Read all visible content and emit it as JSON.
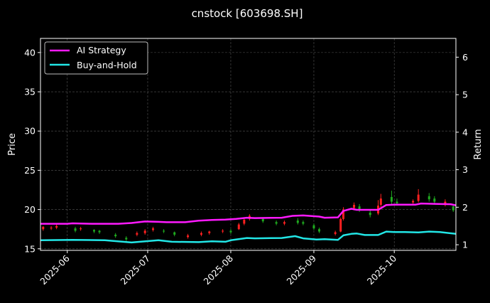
{
  "chart_data": {
    "type": "line",
    "title": "cnstock [603698.SH]",
    "ylabel": "Price",
    "y2label": "Return",
    "ylim": [
      14.8,
      41.8
    ],
    "y2lim": [
      0.85,
      6.5
    ],
    "yticks": [
      15,
      20,
      25,
      30,
      35,
      40
    ],
    "y2ticks": [
      1,
      2,
      3,
      4,
      5,
      6
    ],
    "xlim": [
      "2025-05-22",
      "2025-10-24"
    ],
    "xticks": [
      "2025-06",
      "2025-07",
      "2025-08",
      "2025-09",
      "2025-10"
    ],
    "grid": true,
    "legend_position": "top-left",
    "colors": {
      "up": "#ff2020",
      "down": "#1faa1f",
      "strategy": "#ff1aff",
      "hold": "#22e6e6"
    },
    "series": [
      {
        "name": "AI Strategy",
        "x": [
          "2025-05-22",
          "2025-06-01",
          "2025-06-03",
          "2025-06-10",
          "2025-06-20",
          "2025-06-25",
          "2025-06-30",
          "2025-07-05",
          "2025-07-08",
          "2025-07-15",
          "2025-07-20",
          "2025-07-25",
          "2025-07-30",
          "2025-08-03",
          "2025-08-07",
          "2025-08-10",
          "2025-08-20",
          "2025-08-24",
          "2025-08-28",
          "2025-09-03",
          "2025-09-05",
          "2025-09-10",
          "2025-09-12",
          "2025-09-15",
          "2025-09-17",
          "2025-09-25",
          "2025-09-28",
          "2025-10-01",
          "2025-10-09",
          "2025-10-11",
          "2025-10-16",
          "2025-10-22",
          "2025-10-24"
        ],
        "values": [
          1.56,
          1.56,
          1.57,
          1.56,
          1.56,
          1.58,
          1.62,
          1.61,
          1.6,
          1.6,
          1.64,
          1.66,
          1.67,
          1.69,
          1.72,
          1.71,
          1.72,
          1.77,
          1.78,
          1.75,
          1.72,
          1.73,
          1.9,
          1.96,
          1.93,
          1.93,
          2.06,
          2.07,
          2.07,
          2.1,
          2.09,
          2.08,
          2.05
        ]
      },
      {
        "name": "Buy-and-Hold",
        "x": [
          "2025-05-22",
          "2025-06-03",
          "2025-06-15",
          "2025-06-25",
          "2025-07-05",
          "2025-07-10",
          "2025-07-20",
          "2025-07-25",
          "2025-07-30",
          "2025-08-01",
          "2025-08-07",
          "2025-08-10",
          "2025-08-20",
          "2025-08-25",
          "2025-08-28",
          "2025-09-02",
          "2025-09-05",
          "2025-09-10",
          "2025-09-12",
          "2025-09-15",
          "2025-09-17",
          "2025-09-20",
          "2025-09-25",
          "2025-09-28",
          "2025-10-01",
          "2025-10-05",
          "2025-10-10",
          "2025-10-14",
          "2025-10-18",
          "2025-10-24"
        ],
        "values": [
          1.12,
          1.13,
          1.12,
          1.06,
          1.12,
          1.08,
          1.07,
          1.09,
          1.08,
          1.12,
          1.18,
          1.17,
          1.18,
          1.23,
          1.17,
          1.14,
          1.15,
          1.13,
          1.25,
          1.29,
          1.3,
          1.26,
          1.26,
          1.35,
          1.34,
          1.34,
          1.33,
          1.35,
          1.34,
          1.29
        ]
      }
    ],
    "candles": [
      [
        "2025-05-23",
        17.5,
        17.8,
        17.3,
        17.9
      ],
      [
        "2025-05-26",
        17.6,
        17.7,
        17.4,
        17.9
      ],
      [
        "2025-05-28",
        17.7,
        17.9,
        17.5,
        18.1
      ],
      [
        "2025-06-04",
        17.6,
        17.3,
        17.1,
        17.8
      ],
      [
        "2025-06-06",
        17.5,
        17.6,
        17.3,
        17.8
      ],
      [
        "2025-06-11",
        17.4,
        17.2,
        17.0,
        17.5
      ],
      [
        "2025-06-13",
        17.3,
        17.1,
        16.9,
        17.4
      ],
      [
        "2025-06-19",
        16.8,
        16.6,
        16.4,
        17.0
      ],
      [
        "2025-06-23",
        16.4,
        16.2,
        16.0,
        16.6
      ],
      [
        "2025-06-27",
        16.8,
        17.0,
        16.6,
        17.2
      ],
      [
        "2025-06-30",
        17.0,
        17.3,
        16.8,
        17.5
      ],
      [
        "2025-07-03",
        17.4,
        17.6,
        17.2,
        17.8
      ],
      [
        "2025-07-07",
        17.3,
        17.2,
        17.0,
        17.5
      ],
      [
        "2025-07-11",
        17.1,
        16.8,
        16.6,
        17.2
      ],
      [
        "2025-07-16",
        16.5,
        16.7,
        16.3,
        16.9
      ],
      [
        "2025-07-21",
        16.8,
        17.0,
        16.6,
        17.2
      ],
      [
        "2025-07-24",
        17.0,
        17.2,
        16.8,
        17.3
      ],
      [
        "2025-07-29",
        17.2,
        17.3,
        17.0,
        17.5
      ],
      [
        "2025-08-01",
        17.3,
        17.1,
        16.9,
        17.5
      ],
      [
        "2025-08-04",
        17.5,
        18.1,
        17.4,
        18.3
      ],
      [
        "2025-08-06",
        18.2,
        18.7,
        18.0,
        18.9
      ],
      [
        "2025-08-08",
        18.8,
        19.2,
        18.6,
        19.4
      ],
      [
        "2025-08-13",
        18.8,
        18.5,
        18.3,
        19.0
      ],
      [
        "2025-08-18",
        18.4,
        18.2,
        18.0,
        18.6
      ],
      [
        "2025-08-21",
        18.2,
        18.4,
        18.0,
        18.6
      ],
      [
        "2025-08-26",
        18.6,
        18.3,
        18.1,
        18.9
      ],
      [
        "2025-08-28",
        18.4,
        18.2,
        18.0,
        18.6
      ],
      [
        "2025-09-01",
        18.0,
        17.6,
        17.4,
        18.2
      ],
      [
        "2025-09-03",
        17.5,
        17.2,
        17.0,
        17.7
      ],
      [
        "2025-09-09",
        16.9,
        17.1,
        16.7,
        17.3
      ],
      [
        "2025-09-11",
        17.2,
        18.8,
        17.1,
        19.0
      ],
      [
        "2025-09-12",
        18.8,
        20.0,
        18.6,
        20.3
      ],
      [
        "2025-09-16",
        20.2,
        20.6,
        19.9,
        20.9
      ],
      [
        "2025-09-18",
        20.4,
        20.0,
        19.7,
        20.7
      ],
      [
        "2025-09-22",
        19.6,
        19.3,
        19.0,
        19.9
      ],
      [
        "2025-09-25",
        19.5,
        20.5,
        19.3,
        21.2
      ],
      [
        "2025-09-26",
        20.6,
        21.4,
        20.3,
        22.0
      ],
      [
        "2025-09-30",
        21.6,
        21.0,
        20.6,
        22.4
      ],
      [
        "2025-10-02",
        21.0,
        20.8,
        20.5,
        21.4
      ],
      [
        "2025-10-08",
        20.9,
        21.1,
        20.7,
        21.3
      ],
      [
        "2025-10-10",
        21.1,
        21.9,
        20.9,
        22.6
      ],
      [
        "2025-10-14",
        21.7,
        21.3,
        21.0,
        22.1
      ],
      [
        "2025-10-16",
        21.4,
        21.0,
        20.7,
        21.7
      ],
      [
        "2025-10-20",
        20.6,
        21.0,
        20.4,
        21.3
      ],
      [
        "2025-10-23",
        20.4,
        19.9,
        19.7,
        20.6
      ]
    ]
  }
}
